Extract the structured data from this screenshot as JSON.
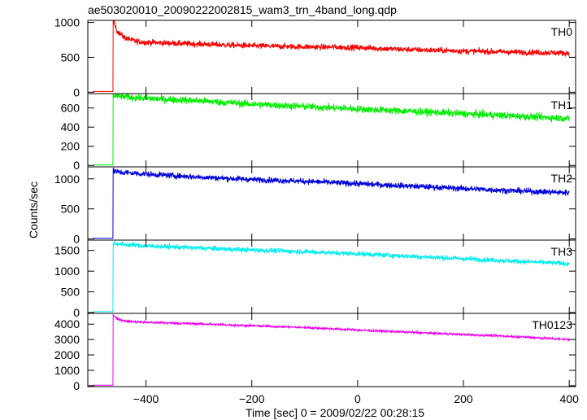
{
  "chart_data": {
    "type": "line",
    "title": "ae503020010_20090222002815_wam3_trn_4band_long.qdp",
    "xlabel": "Time [sec] 0 = 2009/02/22 00:28:15",
    "ylabel": "Counts/sec",
    "xlim": [
      -510,
      412
    ],
    "x_ticks": [
      -400,
      -200,
      0,
      200,
      400
    ],
    "x_tick_labels": [
      "−400",
      "−200",
      "0",
      "200",
      "400"
    ],
    "trigger_time": -462,
    "grid": false,
    "panels": [
      {
        "name": "TH0",
        "color": "#ff0000",
        "ylim": [
          -20,
          1030
        ],
        "y_ticks": [
          0,
          500,
          1000
        ],
        "y_tick_labels": [
          "0",
          "500",
          "1000"
        ],
        "pre_level": 10,
        "profile": [
          [
            -462,
            1020
          ],
          [
            -455,
            880
          ],
          [
            -440,
            780
          ],
          [
            -420,
            730
          ],
          [
            -400,
            715
          ],
          [
            -300,
            690
          ],
          [
            -200,
            665
          ],
          [
            -100,
            650
          ],
          [
            0,
            640
          ],
          [
            100,
            610
          ],
          [
            200,
            590
          ],
          [
            300,
            575
          ],
          [
            400,
            560
          ]
        ],
        "noise": 30
      },
      {
        "name": "TH1",
        "color": "#00ee00",
        "ylim": [
          -15,
          750
        ],
        "y_ticks": [
          0,
          200,
          400,
          600
        ],
        "y_tick_labels": [
          "0",
          "200",
          "400",
          "600"
        ],
        "pre_level": 5,
        "profile": [
          [
            -462,
            730
          ],
          [
            -450,
            720
          ],
          [
            -400,
            700
          ],
          [
            -300,
            675
          ],
          [
            -200,
            640
          ],
          [
            -100,
            615
          ],
          [
            0,
            590
          ],
          [
            100,
            565
          ],
          [
            200,
            540
          ],
          [
            300,
            515
          ],
          [
            400,
            490
          ]
        ],
        "noise": 27
      },
      {
        "name": "TH2",
        "color": "#0000dd",
        "ylim": [
          -20,
          1200
        ],
        "y_ticks": [
          0,
          500,
          1000
        ],
        "y_tick_labels": [
          "0",
          "500",
          "1000"
        ],
        "pre_level": 10,
        "profile": [
          [
            -462,
            1130
          ],
          [
            -450,
            1110
          ],
          [
            -400,
            1080
          ],
          [
            -300,
            1030
          ],
          [
            -200,
            990
          ],
          [
            -100,
            960
          ],
          [
            0,
            920
          ],
          [
            100,
            880
          ],
          [
            200,
            840
          ],
          [
            300,
            800
          ],
          [
            400,
            770
          ]
        ],
        "noise": 35
      },
      {
        "name": "TH3",
        "color": "#00eeee",
        "ylim": [
          -20,
          1750
        ],
        "y_ticks": [
          0,
          500,
          1000,
          1500
        ],
        "y_tick_labels": [
          "0",
          "500",
          "1000",
          "1500"
        ],
        "pre_level": 20,
        "profile": [
          [
            -462,
            1680
          ],
          [
            -450,
            1650
          ],
          [
            -400,
            1610
          ],
          [
            -300,
            1560
          ],
          [
            -200,
            1510
          ],
          [
            -100,
            1470
          ],
          [
            0,
            1420
          ],
          [
            100,
            1360
          ],
          [
            200,
            1300
          ],
          [
            300,
            1240
          ],
          [
            400,
            1180
          ]
        ],
        "noise": 42
      },
      {
        "name": "TH0123",
        "color": "#ee00ee",
        "ylim": [
          -60,
          4700
        ],
        "y_ticks": [
          0,
          1000,
          2000,
          3000,
          4000
        ],
        "y_tick_labels": [
          "0",
          "1000",
          "2000",
          "3000",
          "4000"
        ],
        "pre_level": 30,
        "profile": [
          [
            -462,
            4600
          ],
          [
            -455,
            4350
          ],
          [
            -440,
            4200
          ],
          [
            -400,
            4120
          ],
          [
            -300,
            4020
          ],
          [
            -200,
            3900
          ],
          [
            -100,
            3780
          ],
          [
            0,
            3620
          ],
          [
            100,
            3470
          ],
          [
            200,
            3330
          ],
          [
            300,
            3190
          ],
          [
            400,
            3000
          ]
        ],
        "noise": 55
      }
    ]
  }
}
